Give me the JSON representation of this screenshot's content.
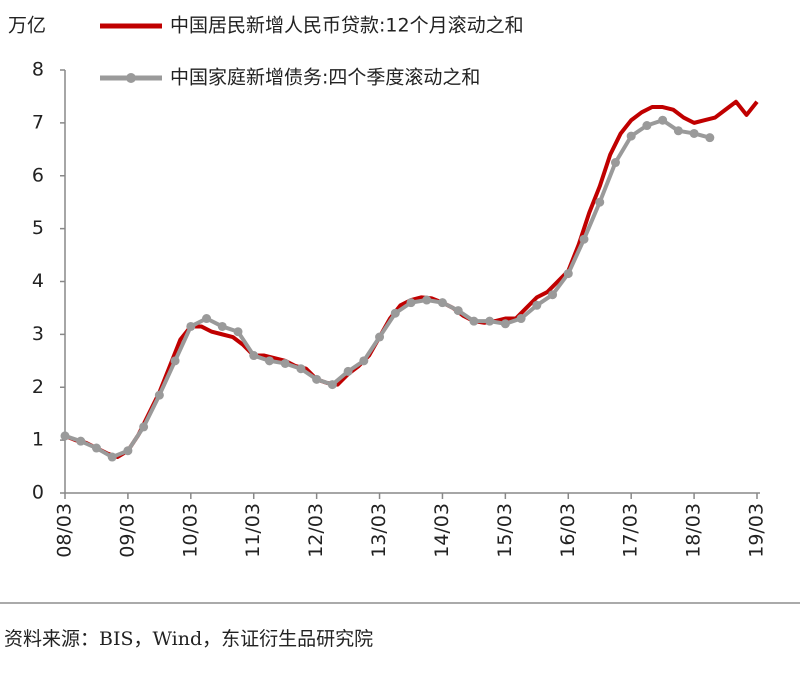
{
  "chart_data": {
    "type": "line",
    "y_label": "万亿",
    "source": "资料来源：BIS，Wind，东证衍生品研究院",
    "xlim": [
      0,
      132
    ],
    "xticks": [
      {
        "value": 0,
        "label": "08/03"
      },
      {
        "value": 12,
        "label": "09/03"
      },
      {
        "value": 24,
        "label": "10/03"
      },
      {
        "value": 36,
        "label": "11/03"
      },
      {
        "value": 48,
        "label": "12/03"
      },
      {
        "value": 60,
        "label": "13/03"
      },
      {
        "value": 72,
        "label": "14/03"
      },
      {
        "value": 84,
        "label": "15/03"
      },
      {
        "value": 96,
        "label": "16/03"
      },
      {
        "value": 108,
        "label": "17/03"
      },
      {
        "value": 120,
        "label": "18/03"
      },
      {
        "value": 132,
        "label": "19/03"
      }
    ],
    "ylim": [
      0,
      8
    ],
    "yticks": [
      0,
      1,
      2,
      3,
      4,
      5,
      6,
      7,
      8
    ],
    "grid": false,
    "legend": "top-left",
    "series": [
      {
        "name": "中国居民新增人民币贷款:12个月滚动之和",
        "color": "#c00000",
        "markers": false,
        "x": [
          0,
          2,
          4,
          6,
          8,
          10,
          12,
          14,
          16,
          18,
          20,
          22,
          24,
          26,
          28,
          30,
          32,
          34,
          36,
          38,
          40,
          42,
          44,
          46,
          48,
          50,
          52,
          54,
          56,
          58,
          60,
          62,
          64,
          66,
          68,
          70,
          72,
          74,
          76,
          78,
          80,
          82,
          84,
          86,
          88,
          90,
          92,
          94,
          96,
          98,
          100,
          102,
          104,
          106,
          108,
          110,
          112,
          114,
          116,
          118,
          120,
          122,
          124,
          126,
          128,
          130,
          132
        ],
        "values": [
          1.08,
          1.0,
          0.95,
          0.85,
          0.75,
          0.68,
          0.8,
          1.1,
          1.5,
          1.9,
          2.4,
          2.9,
          3.15,
          3.15,
          3.05,
          3.0,
          2.95,
          2.8,
          2.6,
          2.6,
          2.55,
          2.5,
          2.4,
          2.35,
          2.15,
          2.08,
          2.05,
          2.25,
          2.4,
          2.6,
          2.95,
          3.3,
          3.55,
          3.65,
          3.7,
          3.68,
          3.6,
          3.5,
          3.35,
          3.25,
          3.22,
          3.25,
          3.3,
          3.3,
          3.5,
          3.7,
          3.8,
          4.0,
          4.2,
          4.7,
          5.3,
          5.8,
          6.4,
          6.8,
          7.05,
          7.2,
          7.3,
          7.3,
          7.25,
          7.1,
          7.0,
          7.05,
          7.1,
          7.25,
          7.4,
          7.15,
          7.4
        ]
      },
      {
        "name": "中国家庭新增债务:四个季度滚动之和",
        "color": "#9a9a9a",
        "markers": true,
        "x": [
          0,
          3,
          6,
          9,
          12,
          15,
          18,
          21,
          24,
          27,
          30,
          33,
          36,
          39,
          42,
          45,
          48,
          51,
          54,
          57,
          60,
          63,
          66,
          69,
          72,
          75,
          78,
          81,
          84,
          87,
          90,
          93,
          96,
          99,
          102,
          105,
          108,
          111,
          114,
          117,
          120,
          123
        ],
        "values": [
          1.08,
          0.98,
          0.85,
          0.68,
          0.8,
          1.25,
          1.85,
          2.5,
          3.15,
          3.3,
          3.15,
          3.05,
          2.6,
          2.5,
          2.45,
          2.35,
          2.15,
          2.05,
          2.3,
          2.5,
          2.95,
          3.4,
          3.6,
          3.65,
          3.6,
          3.45,
          3.25,
          3.25,
          3.2,
          3.3,
          3.55,
          3.75,
          4.15,
          4.8,
          5.5,
          6.25,
          6.75,
          6.95,
          7.05,
          6.85,
          6.8,
          6.72
        ]
      }
    ]
  }
}
